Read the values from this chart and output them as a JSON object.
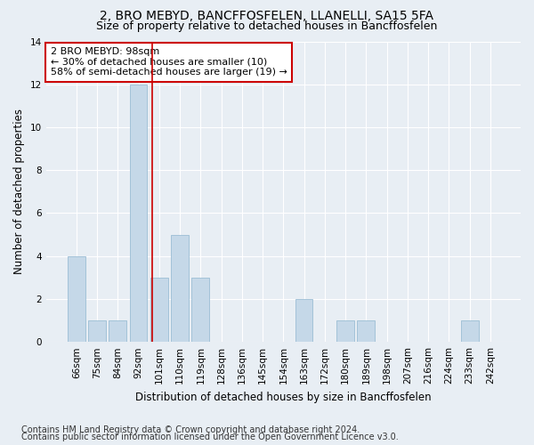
{
  "title": "2, BRO MEBYD, BANCFFOSFELEN, LLANELLI, SA15 5FA",
  "subtitle": "Size of property relative to detached houses in Bancffosfelen",
  "xlabel": "Distribution of detached houses by size in Bancffosfelen",
  "ylabel": "Number of detached properties",
  "categories": [
    "66sqm",
    "75sqm",
    "84sqm",
    "92sqm",
    "101sqm",
    "110sqm",
    "119sqm",
    "128sqm",
    "136sqm",
    "145sqm",
    "154sqm",
    "163sqm",
    "172sqm",
    "180sqm",
    "189sqm",
    "198sqm",
    "207sqm",
    "216sqm",
    "224sqm",
    "233sqm",
    "242sqm"
  ],
  "values": [
    4,
    1,
    1,
    12,
    3,
    5,
    3,
    0,
    0,
    0,
    0,
    2,
    0,
    1,
    1,
    0,
    0,
    0,
    0,
    1,
    0
  ],
  "bar_color": "#c5d8e8",
  "bar_edge_color": "#9bbdd4",
  "vline_x": 3.68,
  "vline_color": "#cc0000",
  "annotation_line1": "2 BRO MEBYD: 98sqm",
  "annotation_line2": "← 30% of detached houses are smaller (10)",
  "annotation_line3": "58% of semi-detached houses are larger (19) →",
  "annotation_box_color": "#ffffff",
  "annotation_box_edge_color": "#cc0000",
  "ylim": [
    0,
    14
  ],
  "yticks": [
    0,
    2,
    4,
    6,
    8,
    10,
    12,
    14
  ],
  "footnote1": "Contains HM Land Registry data © Crown copyright and database right 2024.",
  "footnote2": "Contains public sector information licensed under the Open Government Licence v3.0.",
  "bg_color": "#e8eef4",
  "plot_bg_color": "#e8eef4",
  "title_fontsize": 10,
  "subtitle_fontsize": 9,
  "axis_label_fontsize": 8.5,
  "tick_fontsize": 7.5,
  "annotation_fontsize": 8,
  "footnote_fontsize": 7
}
